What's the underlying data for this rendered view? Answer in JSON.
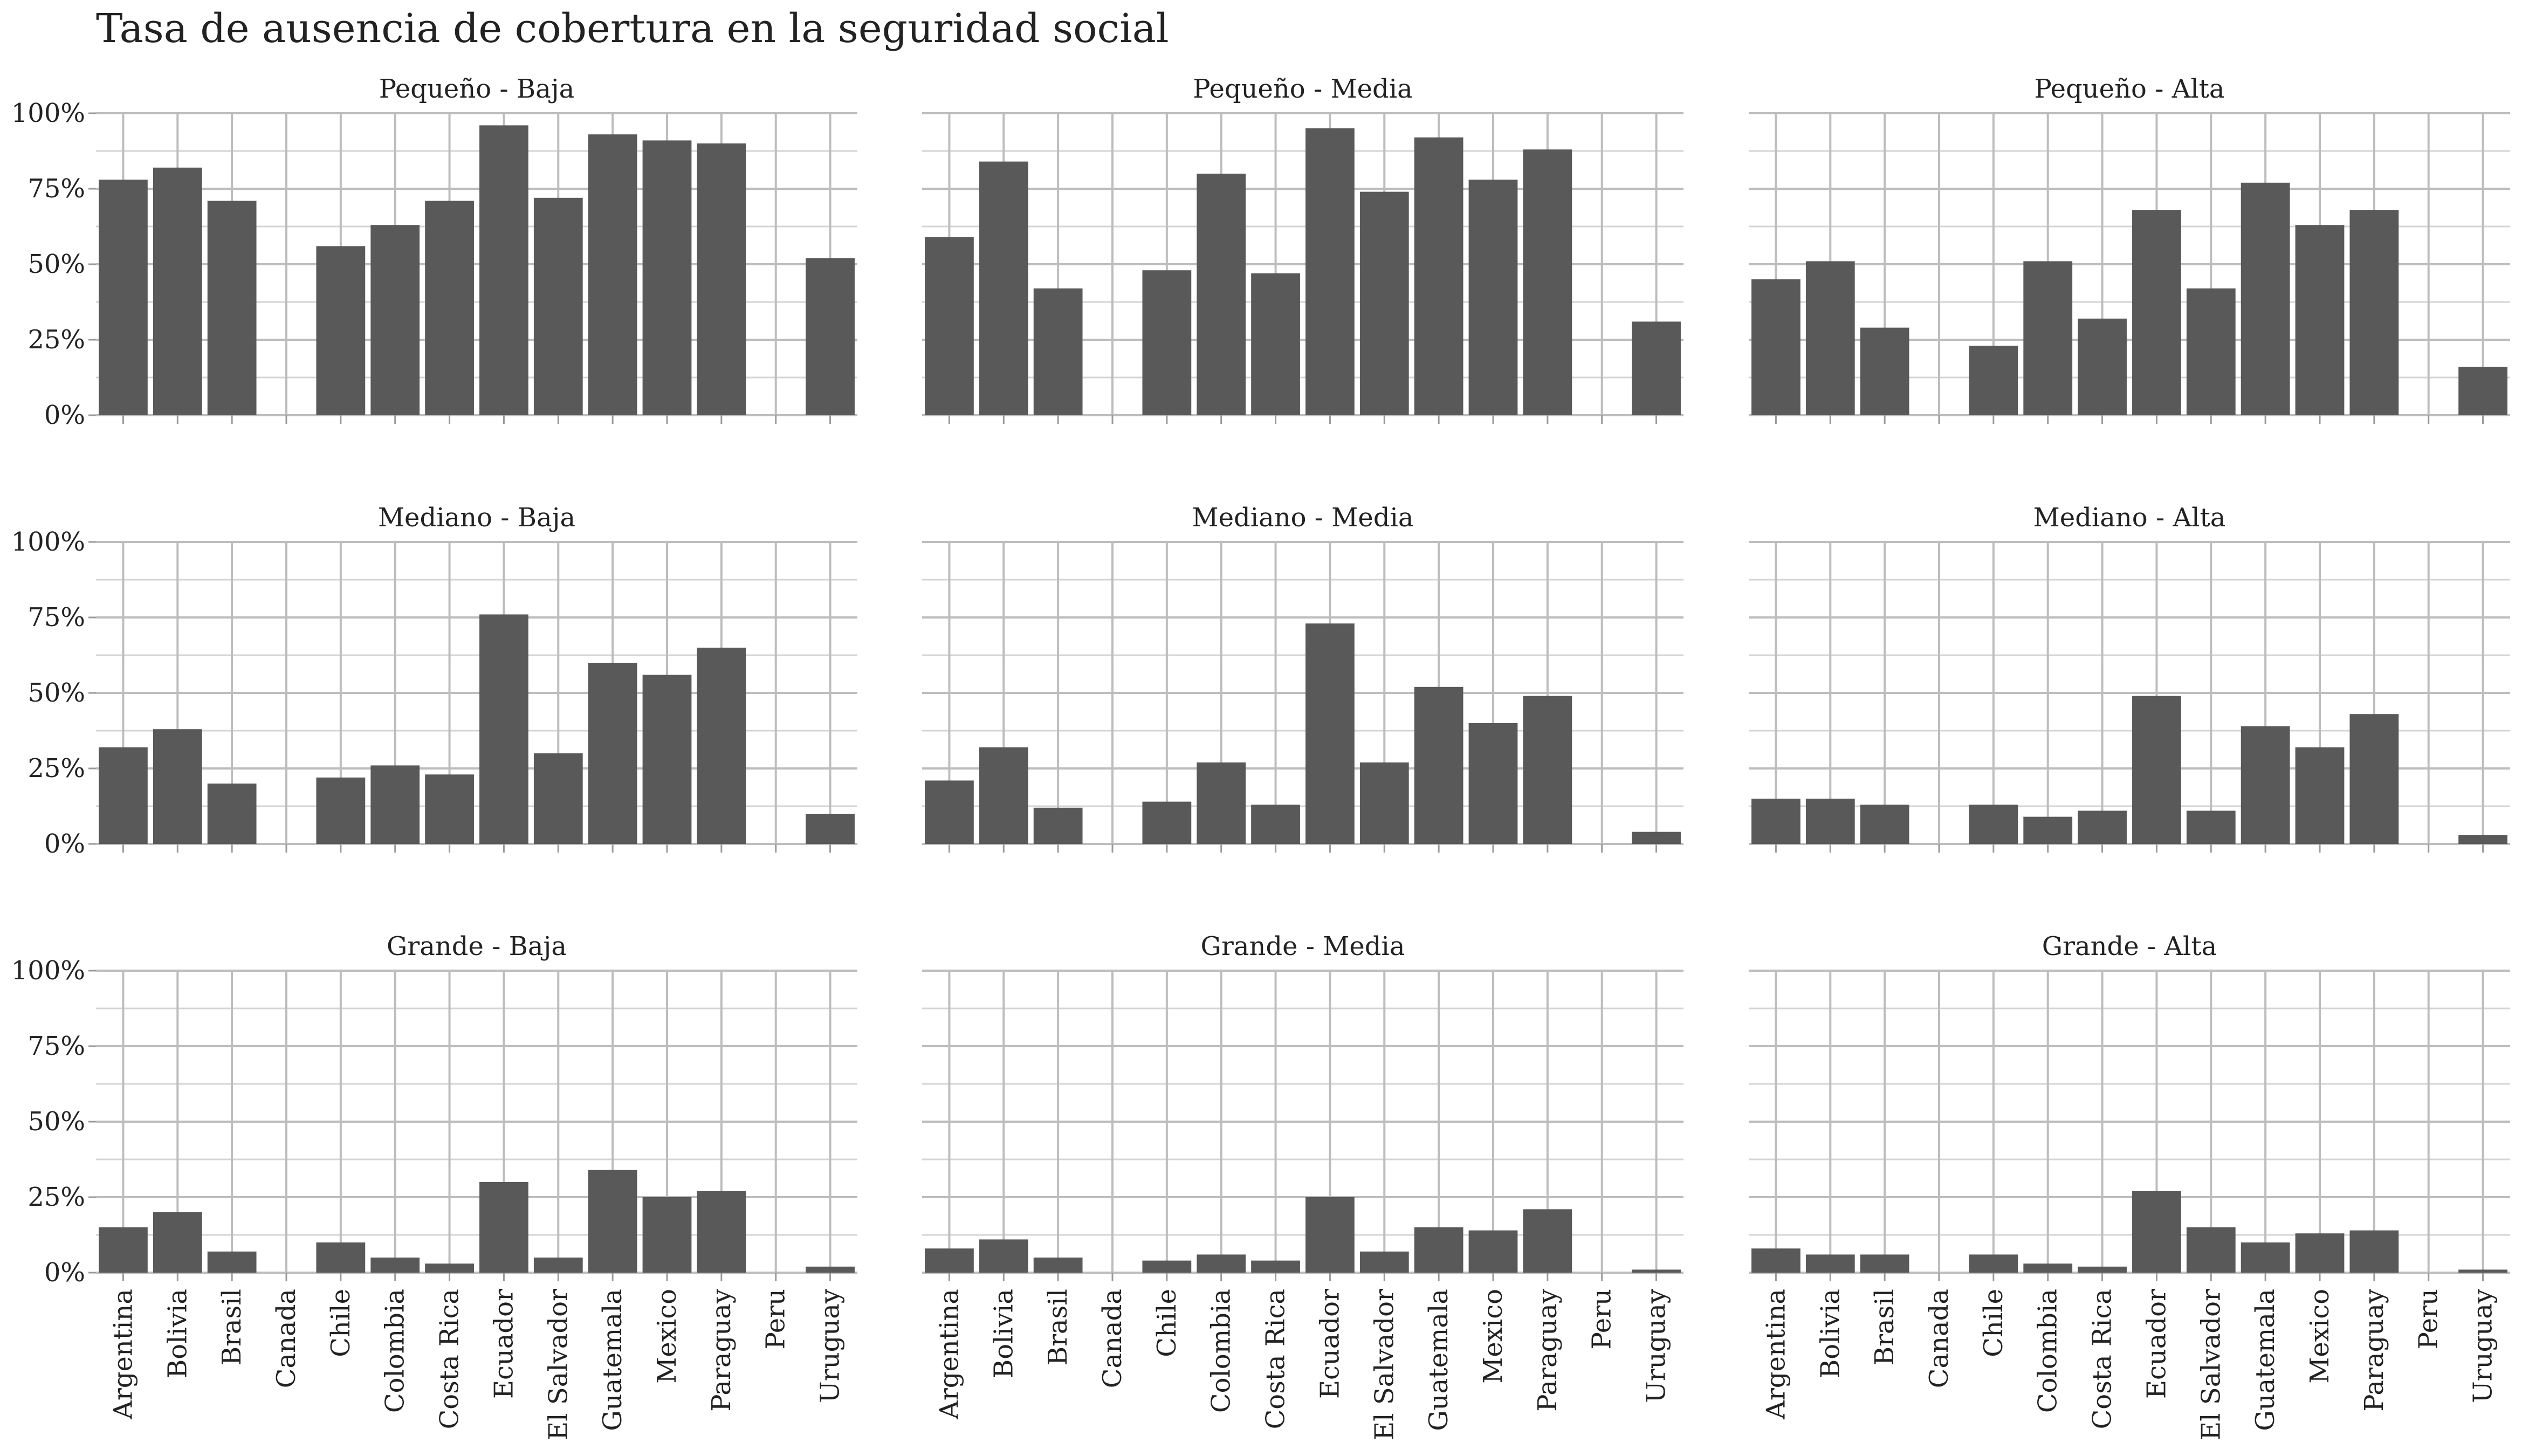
{
  "chart_data": {
    "type": "bar",
    "title": "Tasa de ausencia de cobertura en la seguridad social",
    "xlabel": "",
    "ylabel": "",
    "ylim": [
      0,
      1
    ],
    "y_ticks": [
      "0%",
      "25%",
      "50%",
      "75%",
      "100%"
    ],
    "y_tick_values": [
      0,
      0.25,
      0.5,
      0.75,
      1.0
    ],
    "grid": true,
    "layout": "facet-grid 3x3",
    "categories": [
      "Argentina",
      "Bolivia",
      "Brasil",
      "Canada",
      "Chile",
      "Colombia",
      "Costa Rica",
      "Ecuador",
      "El Salvador",
      "Guatemala",
      "Mexico",
      "Paraguay",
      "Peru",
      "Uruguay"
    ],
    "bar_color": "#595959",
    "panels": [
      {
        "label": "Pequeño - Baja",
        "values": [
          0.78,
          0.82,
          0.71,
          null,
          0.56,
          0.63,
          0.71,
          0.96,
          0.72,
          0.93,
          0.91,
          0.9,
          null,
          0.52
        ]
      },
      {
        "label": "Pequeño - Media",
        "values": [
          0.59,
          0.84,
          0.42,
          null,
          0.48,
          0.8,
          0.47,
          0.95,
          0.74,
          0.92,
          0.78,
          0.88,
          null,
          0.31
        ]
      },
      {
        "label": "Pequeño - Alta",
        "values": [
          0.45,
          0.51,
          0.29,
          null,
          0.23,
          0.51,
          0.32,
          0.68,
          0.42,
          0.77,
          0.63,
          0.68,
          null,
          0.16
        ]
      },
      {
        "label": "Mediano - Baja",
        "values": [
          0.32,
          0.38,
          0.2,
          null,
          0.22,
          0.26,
          0.23,
          0.76,
          0.3,
          0.6,
          0.56,
          0.65,
          null,
          0.1
        ]
      },
      {
        "label": "Mediano - Media",
        "values": [
          0.21,
          0.32,
          0.12,
          null,
          0.14,
          0.27,
          0.13,
          0.73,
          0.27,
          0.52,
          0.4,
          0.49,
          null,
          0.04
        ]
      },
      {
        "label": "Mediano - Alta",
        "values": [
          0.15,
          0.15,
          0.13,
          null,
          0.13,
          0.09,
          0.11,
          0.49,
          0.11,
          0.39,
          0.32,
          0.43,
          null,
          0.03
        ]
      },
      {
        "label": "Grande - Baja",
        "values": [
          0.15,
          0.2,
          0.07,
          null,
          0.1,
          0.05,
          0.03,
          0.3,
          0.05,
          0.34,
          0.25,
          0.27,
          null,
          0.02
        ]
      },
      {
        "label": "Grande - Media",
        "values": [
          0.08,
          0.11,
          0.05,
          null,
          0.04,
          0.06,
          0.04,
          0.25,
          0.07,
          0.15,
          0.14,
          0.21,
          null,
          0.01
        ]
      },
      {
        "label": "Grande - Alta",
        "values": [
          0.08,
          0.06,
          0.06,
          null,
          0.06,
          0.03,
          0.02,
          0.27,
          0.15,
          0.1,
          0.13,
          0.14,
          null,
          0.01
        ]
      }
    ]
  }
}
